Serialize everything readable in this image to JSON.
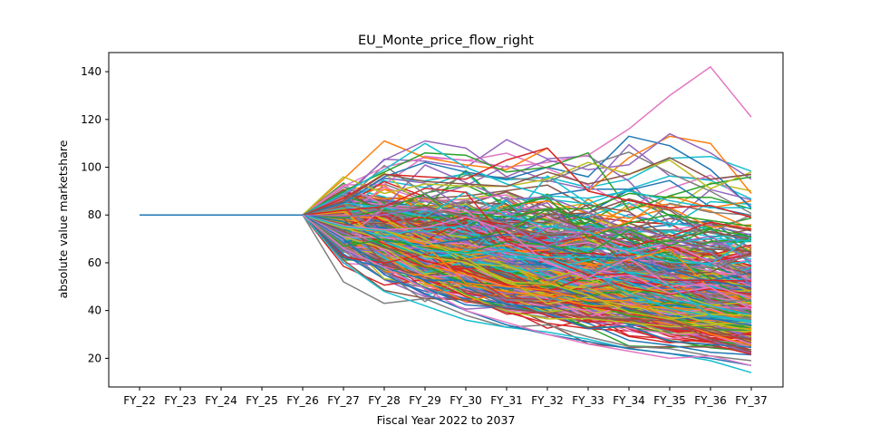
{
  "chart_data": {
    "type": "line",
    "title": "EU_Monte_price_flow_right",
    "xlabel": "Fiscal Year 2022 to 2037",
    "ylabel": "absolute value marketshare",
    "categories": [
      "FY_22",
      "FY_23",
      "FY_24",
      "FY_25",
      "FY_26",
      "FY_27",
      "FY_28",
      "FY_29",
      "FY_30",
      "FY_31",
      "FY_32",
      "FY_33",
      "FY_34",
      "FY_35",
      "FY_36",
      "FY_37"
    ],
    "ylim": [
      8,
      148
    ],
    "yticks": [
      20,
      40,
      60,
      80,
      100,
      120,
      140
    ],
    "grid": false,
    "legend": "none",
    "series_count": 400,
    "base_value": 80,
    "simulation_start_index": 4,
    "highlight_series": [
      {
        "color": "#e377c2",
        "values": [
          80,
          80,
          80,
          80,
          80,
          92,
          100,
          104,
          103,
          100,
          102,
          105,
          116,
          130,
          142,
          121
        ]
      },
      {
        "color": "#ff7f0e",
        "values": [
          80,
          80,
          80,
          80,
          80,
          95,
          111,
          104,
          101,
          99,
          108,
          90,
          104,
          113,
          110,
          89
        ]
      },
      {
        "color": "#1f77b4",
        "values": [
          80,
          80,
          80,
          80,
          80,
          85,
          96,
          102,
          98,
          95,
          100,
          96,
          113,
          109,
          99,
          83
        ]
      },
      {
        "color": "#9467bd",
        "values": [
          80,
          80,
          80,
          80,
          80,
          88,
          103,
          111,
          108,
          96,
          103,
          99,
          101,
          114,
          106,
          95
        ]
      },
      {
        "color": "#2ca02c",
        "values": [
          80,
          80,
          80,
          80,
          80,
          90,
          98,
          106,
          105,
          98,
          100,
          106,
          82,
          88,
          93,
          96
        ]
      },
      {
        "color": "#bcbd22",
        "values": [
          80,
          80,
          80,
          80,
          80,
          96,
          89,
          93,
          92,
          92,
          95,
          102,
          97,
          103,
          91,
          98
        ]
      },
      {
        "color": "#17becf",
        "values": [
          80,
          80,
          80,
          80,
          80,
          89,
          99,
          110,
          100,
          93,
          88,
          87,
          90,
          86,
          83,
          83
        ]
      },
      {
        "color": "#d62728",
        "values": [
          80,
          80,
          80,
          80,
          80,
          87,
          97,
          96,
          95,
          103,
          108,
          90,
          86,
          83,
          84,
          79
        ]
      },
      {
        "color": "#8c564b",
        "values": [
          80,
          80,
          80,
          80,
          80,
          86,
          97,
          94,
          93,
          92,
          98,
          93,
          97,
          104,
          95,
          97
        ]
      },
      {
        "color": "#7f7f7f",
        "values": [
          80,
          80,
          80,
          80,
          80,
          52,
          43,
          45,
          38,
          33,
          34,
          29,
          25,
          24,
          21,
          19
        ]
      },
      {
        "color": "#17becf",
        "values": [
          80,
          80,
          80,
          80,
          80,
          60,
          48,
          42,
          36,
          33,
          31,
          28,
          24,
          22,
          19,
          14
        ]
      },
      {
        "color": "#1f77b4",
        "values": [
          80,
          80,
          80,
          80,
          80,
          70,
          55,
          47,
          40,
          34,
          30,
          27,
          24,
          22,
          20,
          17
        ]
      },
      {
        "color": "#e377c2",
        "values": [
          80,
          80,
          80,
          80,
          80,
          66,
          58,
          49,
          40,
          35,
          30,
          26,
          23,
          20,
          21,
          17
        ]
      }
    ],
    "line_width": 1.5,
    "colors": [
      "#1f77b4",
      "#ff7f0e",
      "#2ca02c",
      "#d62728",
      "#9467bd",
      "#8c564b",
      "#e377c2",
      "#7f7f7f",
      "#bcbd22",
      "#17becf"
    ]
  }
}
